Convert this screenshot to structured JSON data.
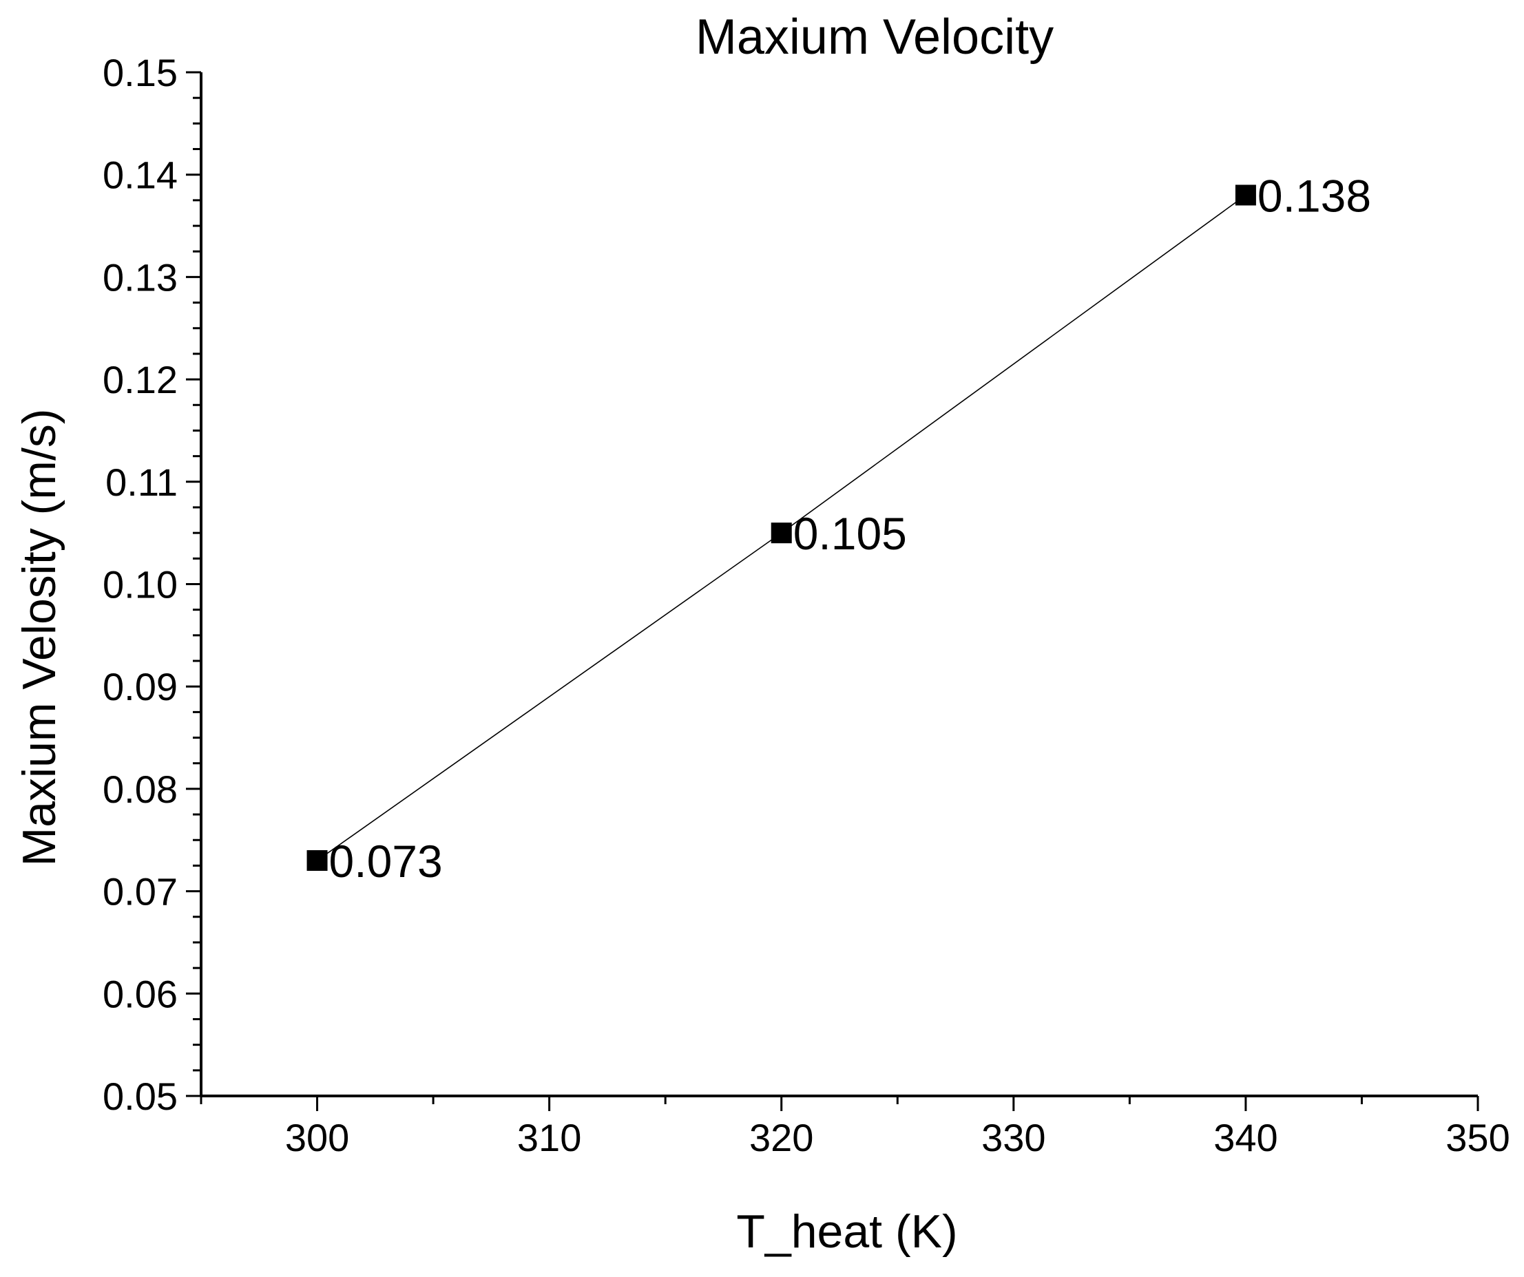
{
  "chart_data": {
    "type": "line",
    "title": "Maxium Velocity",
    "xlabel": "T_heat (K)",
    "ylabel": "Maxium Velosity (m/s)",
    "xlim": [
      295,
      350
    ],
    "ylim": [
      0.05,
      0.15
    ],
    "x_ticks": [
      "300",
      "310",
      "320",
      "330",
      "340",
      "350"
    ],
    "x_tick_values": [
      300,
      310,
      320,
      330,
      340,
      350
    ],
    "x_minor_step": 5,
    "y_ticks": [
      "0.05",
      "0.06",
      "0.07",
      "0.08",
      "0.09",
      "0.10",
      "0.11",
      "0.12",
      "0.13",
      "0.14",
      "0.15"
    ],
    "y_tick_values": [
      0.05,
      0.06,
      0.07,
      0.08,
      0.09,
      0.1,
      0.11,
      0.12,
      0.13,
      0.14,
      0.15
    ],
    "y_minor_step": 0.0025,
    "grid": false,
    "series": [
      {
        "name": "Maxium Velocity",
        "marker": "square",
        "color": "#000000",
        "x": [
          300,
          320,
          340
        ],
        "values": [
          0.073,
          0.105,
          0.138
        ],
        "labels": [
          "0.073",
          "0.105",
          "0.138"
        ]
      }
    ]
  }
}
